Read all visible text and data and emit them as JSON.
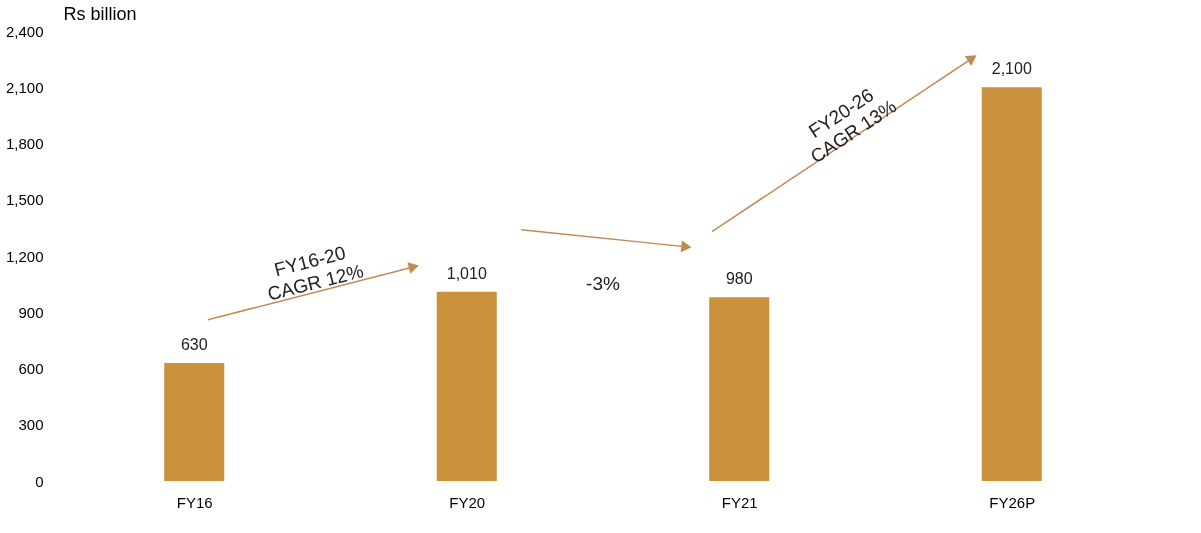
{
  "chart_data": {
    "type": "bar",
    "ylabel": "Rs billion",
    "categories": [
      "FY16",
      "FY20",
      "FY21",
      "FY26P"
    ],
    "values": [
      630,
      1010,
      980,
      2100
    ],
    "value_labels": [
      "630",
      "1,010",
      "980",
      "2,100"
    ],
    "color": "#c8913a",
    "ylim": [
      0,
      2400
    ],
    "yticks": [
      0,
      {
        "value": 300,
        "label": "300"
      },
      {
        "value": 600,
        "label": "600"
      },
      {
        "value": 900,
        "label": "900"
      },
      {
        "value": 1200,
        "label": "1,200"
      },
      {
        "value": 1500,
        "label": "1,500"
      },
      {
        "value": 1800,
        "label": "1,800"
      },
      {
        "value": 2100,
        "label": "2,100"
      },
      {
        "value": 2400,
        "label": "2,400"
      }
    ],
    "grid": false,
    "annotations": [
      "FY16-20\nCAGR 12%",
      "-3%",
      "FY20-26\nCAGR 13%"
    ]
  }
}
